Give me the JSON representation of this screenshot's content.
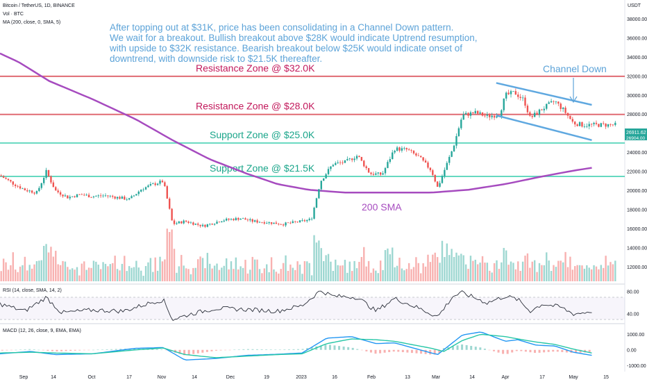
{
  "header": {
    "symbol": "Bitcoin / TetherUS, 1D, BINANCE",
    "volume": "Vol · BTC",
    "ma": "MA (200, close, 0, SMA, 5)",
    "currency": "USDT"
  },
  "annotation": {
    "lines": [
      "After topping out at $31K, price has been consolidating in a Channel Down pattern.",
      "We wait for a breakout. Bullish breakout above $28K would indicate Uptrend resumption,",
      "with upside to $32K resistance. Bearish breakout below $25K would indicate onset of",
      "downtrend, with downside risk to $21.5K thereafter."
    ],
    "channel_label": "Channel Down",
    "sma_label": "200 SMA"
  },
  "colors": {
    "resistance": "#e06b73",
    "resistance_text": "#c2185b",
    "support": "#66d9c0",
    "support_text": "#1aa58a",
    "sma": "#a64bbf",
    "channel": "#5fa8e0",
    "up": "#26a69a",
    "down": "#ef5350",
    "rsi": "#2a2e39",
    "macd_line": "#2196f3",
    "signal_line": "#26c6a6"
  },
  "chart_data": {
    "type": "candlestick",
    "y_axis": {
      "range": [
        10500,
        40000
      ],
      "ticks": [
        "38000.00",
        "36000.00",
        "34000.00",
        "32000.00",
        "30000.00",
        "28000.00",
        "26000.00",
        "24000.00",
        "22000.00",
        "20000.00",
        "18000.00",
        "16000.00",
        "14000.00",
        "12000.00"
      ],
      "current_price": "26911.62",
      "current_sub": "26904.00"
    },
    "x_axis": {
      "ticks": [
        "Sep",
        "14",
        "Oct",
        "17",
        "Nov",
        "14",
        "Dec",
        "19",
        "2023",
        "16",
        "Feb",
        "13",
        "Mar",
        "14",
        "Apr",
        "17",
        "May",
        "15"
      ]
    },
    "horizontal_levels": [
      {
        "label": "Resistance Zone @ $32.0K",
        "value": 32000,
        "kind": "resistance"
      },
      {
        "label": "Resistance Zone @ $28.0K",
        "value": 28000,
        "kind": "resistance"
      },
      {
        "label": "Support Zone @ $25.0K",
        "value": 25000,
        "kind": "support"
      },
      {
        "label": "Support Zone @ $21.5K",
        "value": 21500,
        "kind": "support"
      }
    ],
    "channel": {
      "upper": [
        [
          0.805,
          31300
        ],
        [
          0.96,
          29000
        ]
      ],
      "lower": [
        [
          0.805,
          27900
        ],
        [
          0.96,
          25300
        ]
      ]
    },
    "sma200": [
      [
        0,
        34400
      ],
      [
        0.03,
        33500
      ],
      [
        0.08,
        31500
      ],
      [
        0.15,
        29600
      ],
      [
        0.22,
        27500
      ],
      [
        0.28,
        25300
      ],
      [
        0.34,
        23300
      ],
      [
        0.4,
        21800
      ],
      [
        0.45,
        20700
      ],
      [
        0.5,
        20100
      ],
      [
        0.56,
        19800
      ],
      [
        0.62,
        19800
      ],
      [
        0.7,
        19800
      ],
      [
        0.76,
        20100
      ],
      [
        0.82,
        20700
      ],
      [
        0.88,
        21500
      ],
      [
        0.93,
        22100
      ],
      [
        0.96,
        22400
      ]
    ],
    "price_path": [
      [
        0,
        21600
      ],
      [
        0.02,
        20800
      ],
      [
        0.04,
        20100
      ],
      [
        0.06,
        19800
      ],
      [
        0.075,
        22000
      ],
      [
        0.09,
        20000
      ],
      [
        0.11,
        19300
      ],
      [
        0.13,
        19600
      ],
      [
        0.15,
        19400
      ],
      [
        0.17,
        19500
      ],
      [
        0.19,
        19300
      ],
      [
        0.21,
        19100
      ],
      [
        0.23,
        20200
      ],
      [
        0.25,
        20700
      ],
      [
        0.265,
        21000
      ],
      [
        0.28,
        16500
      ],
      [
        0.3,
        16800
      ],
      [
        0.33,
        16300
      ],
      [
        0.36,
        16900
      ],
      [
        0.39,
        17100
      ],
      [
        0.41,
        16800
      ],
      [
        0.43,
        16700
      ],
      [
        0.46,
        16500
      ],
      [
        0.49,
        16800
      ],
      [
        0.505,
        17000
      ],
      [
        0.52,
        21000
      ],
      [
        0.54,
        22800
      ],
      [
        0.56,
        23000
      ],
      [
        0.58,
        23700
      ],
      [
        0.6,
        21800
      ],
      [
        0.62,
        21700
      ],
      [
        0.64,
        24400
      ],
      [
        0.66,
        24300
      ],
      [
        0.68,
        23500
      ],
      [
        0.7,
        22100
      ],
      [
        0.71,
        20300
      ],
      [
        0.72,
        22000
      ],
      [
        0.735,
        24500
      ],
      [
        0.75,
        27900
      ],
      [
        0.77,
        28200
      ],
      [
        0.79,
        27800
      ],
      [
        0.81,
        28000
      ],
      [
        0.82,
        30000
      ],
      [
        0.835,
        30300
      ],
      [
        0.85,
        29500
      ],
      [
        0.86,
        27600
      ],
      [
        0.88,
        28600
      ],
      [
        0.9,
        29400
      ],
      [
        0.915,
        28400
      ],
      [
        0.93,
        27100
      ],
      [
        0.945,
        26900
      ],
      [
        0.96,
        26900
      ]
    ],
    "volume_axis_label": "Vol · BTC",
    "rsi": {
      "label": "RSI (14, close, SMA, 14, 2)",
      "range": [
        25,
        90
      ],
      "ticks": [
        "80.00",
        "40.00"
      ],
      "path": [
        [
          0,
          58
        ],
        [
          0.04,
          45
        ],
        [
          0.075,
          70
        ],
        [
          0.1,
          42
        ],
        [
          0.15,
          47
        ],
        [
          0.2,
          45
        ],
        [
          0.25,
          62
        ],
        [
          0.265,
          65
        ],
        [
          0.28,
          30
        ],
        [
          0.31,
          40
        ],
        [
          0.35,
          50
        ],
        [
          0.4,
          48
        ],
        [
          0.45,
          45
        ],
        [
          0.49,
          55
        ],
        [
          0.52,
          82
        ],
        [
          0.54,
          72
        ],
        [
          0.58,
          70
        ],
        [
          0.61,
          45
        ],
        [
          0.64,
          68
        ],
        [
          0.68,
          50
        ],
        [
          0.71,
          35
        ],
        [
          0.735,
          72
        ],
        [
          0.75,
          78
        ],
        [
          0.79,
          60
        ],
        [
          0.82,
          72
        ],
        [
          0.84,
          66
        ],
        [
          0.86,
          45
        ],
        [
          0.88,
          58
        ],
        [
          0.91,
          52
        ],
        [
          0.93,
          40
        ],
        [
          0.945,
          42
        ],
        [
          0.96,
          45
        ]
      ]
    },
    "macd": {
      "label": "MACD (12, 26, close, 9, EMA, EMA)",
      "range": [
        -1300,
        1500
      ],
      "ticks": [
        "1000.00",
        "0.00",
        "-1000.00"
      ],
      "macd_path": [
        [
          0,
          -250
        ],
        [
          0.05,
          -100
        ],
        [
          0.09,
          -300
        ],
        [
          0.15,
          -250
        ],
        [
          0.22,
          100
        ],
        [
          0.265,
          150
        ],
        [
          0.3,
          -650
        ],
        [
          0.35,
          -550
        ],
        [
          0.4,
          -350
        ],
        [
          0.45,
          -280
        ],
        [
          0.49,
          -200
        ],
        [
          0.53,
          750
        ],
        [
          0.57,
          850
        ],
        [
          0.61,
          400
        ],
        [
          0.64,
          450
        ],
        [
          0.7,
          -200
        ],
        [
          0.71,
          -300
        ],
        [
          0.75,
          950
        ],
        [
          0.78,
          1150
        ],
        [
          0.82,
          550
        ],
        [
          0.84,
          650
        ],
        [
          0.87,
          300
        ],
        [
          0.9,
          250
        ],
        [
          0.93,
          -150
        ],
        [
          0.96,
          -350
        ]
      ],
      "signal_path": [
        [
          0,
          -200
        ],
        [
          0.05,
          -150
        ],
        [
          0.09,
          -200
        ],
        [
          0.15,
          -250
        ],
        [
          0.22,
          0
        ],
        [
          0.265,
          120
        ],
        [
          0.3,
          -300
        ],
        [
          0.35,
          -500
        ],
        [
          0.4,
          -400
        ],
        [
          0.45,
          -300
        ],
        [
          0.49,
          -250
        ],
        [
          0.53,
          400
        ],
        [
          0.57,
          700
        ],
        [
          0.61,
          650
        ],
        [
          0.64,
          550
        ],
        [
          0.7,
          100
        ],
        [
          0.72,
          -100
        ],
        [
          0.75,
          600
        ],
        [
          0.78,
          1000
        ],
        [
          0.82,
          850
        ],
        [
          0.84,
          700
        ],
        [
          0.87,
          500
        ],
        [
          0.9,
          350
        ],
        [
          0.93,
          50
        ],
        [
          0.96,
          -200
        ]
      ]
    }
  }
}
